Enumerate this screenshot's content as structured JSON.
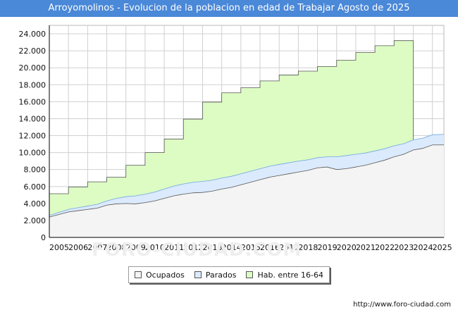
{
  "title": "Arroyomolinos - Evolucion de la poblacion en edad de Trabajar Agosto de 2025",
  "footer_url": "http://www.foro-ciudad.com",
  "watermark": "FORO-CIUDAD.COM",
  "colors": {
    "title_bg": "#4a88d8",
    "ocupados_fill": "#f4f4f4",
    "ocupados_line": "#555555",
    "parados_fill": "#dbeafc",
    "parados_line": "#6fa6e0",
    "hab_fill": "#ddfcc4",
    "hab_line": "#555555",
    "grid": "#d0d0d0"
  },
  "chart_data": {
    "type": "area",
    "title": "Arroyomolinos - Evolucion de la poblacion en edad de Trabajar Agosto de 2025",
    "xlabel": "",
    "ylabel": "",
    "x_range": [
      2005,
      2025.6
    ],
    "ylim": [
      0,
      25000
    ],
    "yticks": [
      0,
      2000,
      4000,
      6000,
      8000,
      10000,
      12000,
      14000,
      16000,
      18000,
      20000,
      22000,
      24000
    ],
    "ytick_labels": [
      "0",
      "2.000",
      "4.000",
      "6.000",
      "8.000",
      "10.000",
      "12.000",
      "14.000",
      "16.000",
      "18.000",
      "20.000",
      "22.000",
      "24.000"
    ],
    "xticks": [
      2005,
      2006,
      2007,
      2008,
      2009,
      2010,
      2011,
      2012,
      2013,
      2014,
      2015,
      2016,
      2017,
      2018,
      2019,
      2020,
      2021,
      2022,
      2023,
      2024,
      2025
    ],
    "xtick_labels": [
      "2005",
      "2006",
      "2007",
      "2008",
      "2009",
      "2010",
      "2011",
      "2012",
      "2013",
      "2014",
      "2015",
      "2016",
      "2017",
      "2018",
      "2019",
      "2020",
      "2021",
      "2022",
      "2023",
      "2024",
      "2025"
    ],
    "grid": true,
    "legend_position": "bottom-center",
    "series": [
      {
        "name": "Ocupados",
        "x": [
          2005,
          2005.5,
          2006,
          2006.5,
          2007,
          2007.5,
          2008,
          2008.5,
          2009,
          2009.5,
          2010,
          2010.5,
          2011,
          2011.5,
          2012,
          2012.5,
          2013,
          2013.5,
          2014,
          2014.5,
          2015,
          2015.5,
          2016,
          2016.5,
          2017,
          2017.5,
          2018,
          2018.5,
          2019,
          2019.5,
          2020,
          2020.5,
          2021,
          2021.5,
          2022,
          2022.5,
          2023,
          2023.5,
          2024,
          2024.5,
          2025,
          2025.6
        ],
        "values": [
          2400,
          2700,
          3000,
          3150,
          3300,
          3450,
          3800,
          3950,
          4000,
          3950,
          4100,
          4300,
          4600,
          4900,
          5100,
          5250,
          5300,
          5450,
          5700,
          5900,
          6200,
          6500,
          6800,
          7100,
          7300,
          7500,
          7700,
          7900,
          8200,
          8300,
          8000,
          8100,
          8300,
          8500,
          8800,
          9100,
          9500,
          9800,
          10300,
          10500,
          10900,
          10900
        ]
      },
      {
        "name": "Parados",
        "x": [
          2005,
          2005.5,
          2006,
          2006.5,
          2007,
          2007.5,
          2008,
          2008.5,
          2009,
          2009.5,
          2010,
          2010.5,
          2011,
          2011.5,
          2012,
          2012.5,
          2013,
          2013.5,
          2014,
          2014.5,
          2015,
          2015.5,
          2016,
          2016.5,
          2017,
          2017.5,
          2018,
          2018.5,
          2019,
          2019.5,
          2020,
          2020.5,
          2021,
          2021.5,
          2022,
          2022.5,
          2023,
          2023.5,
          2024,
          2024.5,
          2025,
          2025.6
        ],
        "values": [
          200,
          250,
          300,
          350,
          400,
          450,
          500,
          650,
          800,
          950,
          1000,
          1050,
          1100,
          1150,
          1200,
          1250,
          1300,
          1300,
          1300,
          1300,
          1300,
          1300,
          1300,
          1300,
          1300,
          1300,
          1300,
          1250,
          1200,
          1200,
          1500,
          1550,
          1500,
          1450,
          1400,
          1350,
          1300,
          1250,
          1200,
          1200,
          1200,
          1250
        ]
      },
      {
        "name": "Hab. entre 16-64",
        "steps": [
          {
            "from": 2005,
            "to": 2006,
            "value": 5150
          },
          {
            "from": 2006,
            "to": 2007,
            "value": 5950
          },
          {
            "from": 2007,
            "to": 2008,
            "value": 6550
          },
          {
            "from": 2008,
            "to": 2009,
            "value": 7100
          },
          {
            "from": 2009,
            "to": 2010,
            "value": 8500
          },
          {
            "from": 2010,
            "to": 2011,
            "value": 10000
          },
          {
            "from": 2011,
            "to": 2012,
            "value": 11600
          },
          {
            "from": 2012,
            "to": 2013,
            "value": 13950
          },
          {
            "from": 2013,
            "to": 2014,
            "value": 15950
          },
          {
            "from": 2014,
            "to": 2015,
            "value": 17050
          },
          {
            "from": 2015,
            "to": 2016,
            "value": 17650
          },
          {
            "from": 2016,
            "to": 2017,
            "value": 18450
          },
          {
            "from": 2017,
            "to": 2018,
            "value": 19150
          },
          {
            "from": 2018,
            "to": 2019,
            "value": 19600
          },
          {
            "from": 2019,
            "to": 2020,
            "value": 20150
          },
          {
            "from": 2020,
            "to": 2021,
            "value": 20900
          },
          {
            "from": 2021,
            "to": 2022,
            "value": 21800
          },
          {
            "from": 2022,
            "to": 2023,
            "value": 22600
          },
          {
            "from": 2023,
            "to": 2024,
            "value": 23200
          }
        ]
      }
    ]
  },
  "legend": {
    "items": [
      {
        "label": "Ocupados"
      },
      {
        "label": "Parados"
      },
      {
        "label": "Hab. entre 16-64"
      }
    ]
  }
}
